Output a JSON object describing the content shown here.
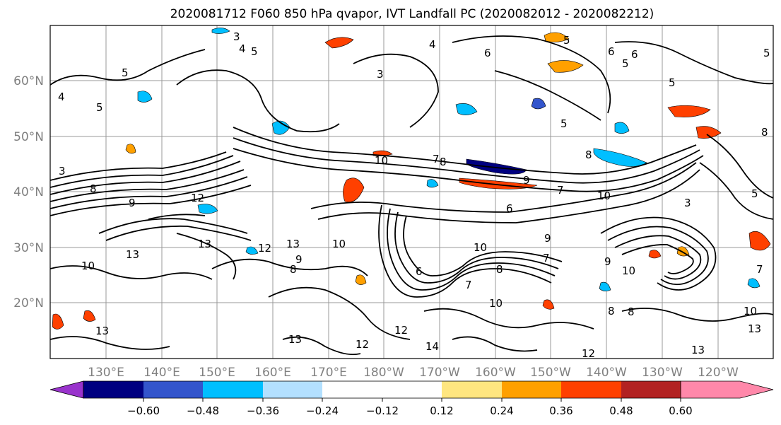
{
  "title": "2020081712 F060 850 hPa qvapor, IVT Landfall PC (2020082012 - 2020082212)",
  "map": {
    "lat_labels": [
      "60°N",
      "50°N",
      "40°N",
      "30°N",
      "20°N"
    ],
    "lon_labels": [
      "130°E",
      "140°E",
      "150°E",
      "160°E",
      "170°E",
      "180°W",
      "170°W",
      "160°W",
      "150°W",
      "140°W",
      "130°W",
      "120°W"
    ],
    "contour_labels": [
      "3",
      "4",
      "5",
      "5",
      "4",
      "5",
      "5",
      "6",
      "6",
      "6",
      "5",
      "5",
      "4",
      "3",
      "5",
      "7",
      "8",
      "8",
      "8",
      "10",
      "9",
      "9",
      "7",
      "6",
      "3",
      "5",
      "13",
      "13",
      "12",
      "10",
      "13",
      "10",
      "9",
      "8",
      "7",
      "8",
      "8",
      "10",
      "12",
      "13",
      "14",
      "13",
      "13",
      "10",
      "9",
      "6",
      "5",
      "3",
      "8",
      "7",
      "10",
      "12",
      "13",
      "12",
      "10",
      "9",
      "8",
      "7",
      "10",
      "12"
    ]
  },
  "colorbar": {
    "tick_labels": [
      "−0.60",
      "−0.48",
      "−0.36",
      "−0.24",
      "−0.12",
      "0.12",
      "0.24",
      "0.36",
      "0.48",
      "0.60"
    ],
    "bins": [
      {
        "color": "#9933cc"
      },
      {
        "color": "#000080"
      },
      {
        "color": "#3355cc"
      },
      {
        "color": "#00bfff"
      },
      {
        "color": "#b3e0ff"
      },
      {
        "color": "#ffffff"
      },
      {
        "color": "#ffe680"
      },
      {
        "color": "#ffa000"
      },
      {
        "color": "#ff4000"
      },
      {
        "color": "#b22222"
      },
      {
        "color": "#ff88aa"
      }
    ]
  }
}
